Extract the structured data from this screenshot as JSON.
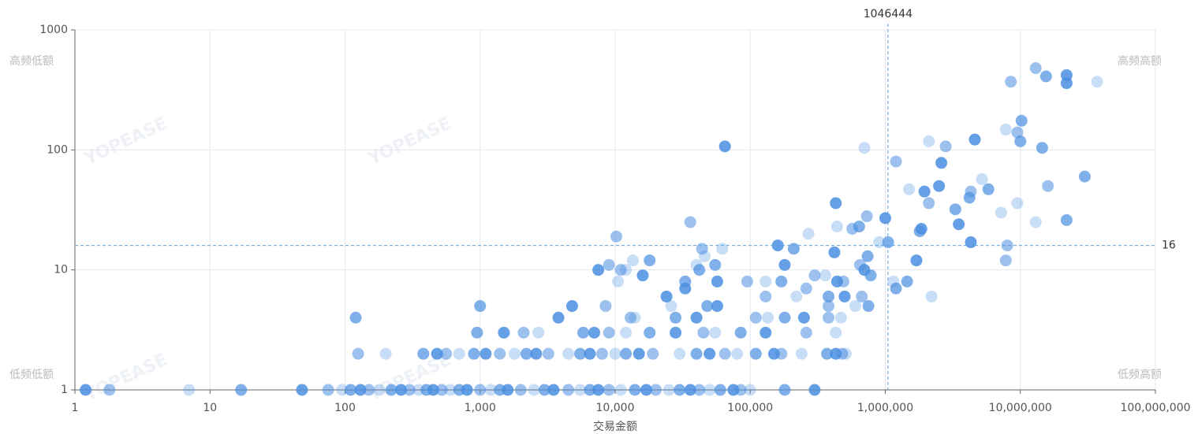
{
  "chart_data": {
    "type": "scatter",
    "x_label": "交易金额",
    "xscale": "log",
    "yscale": "log",
    "xlim": [
      1,
      100000000
    ],
    "ylim": [
      1,
      1000
    ],
    "xticks": [
      1,
      10,
      100,
      {
        "value": 1000,
        "label": "1,000"
      },
      {
        "value": 10000,
        "label": "10,000"
      },
      {
        "value": 100000,
        "label": "100,000"
      },
      {
        "value": 1000000,
        "label": "1,000,000"
      },
      {
        "value": 10000000,
        "label": "10,000,000"
      },
      {
        "value": 100000000,
        "label": "100,000,000"
      }
    ],
    "yticks": [
      1,
      10,
      100,
      1000
    ],
    "grid": true,
    "color": "#4a8ee0",
    "reference_lines": {
      "x": 1046444,
      "y": 16,
      "color": "#5aa0e0"
    },
    "quadrant_labels": {
      "top_left": "高频低额",
      "top_right": "高频高额",
      "bottom_left": "低频低额",
      "bottom_right": "低频高额"
    },
    "watermark": "YOPEASE",
    "x": [
      1.2,
      1.8,
      7,
      17,
      48,
      75,
      95,
      110,
      130,
      150,
      180,
      220,
      260,
      300,
      350,
      400,
      450,
      520,
      600,
      700,
      800,
      1000,
      1200,
      1400,
      1600,
      2000,
      2500,
      3000,
      3500,
      4500,
      5500,
      6500,
      7500,
      9000,
      11000,
      14000,
      17000,
      20000,
      25000,
      30000,
      36000,
      42000,
      50000,
      60000,
      75000,
      85000,
      100000,
      180000,
      300000,
      125,
      200,
      380,
      480,
      560,
      700,
      900,
      1100,
      1400,
      1800,
      2200,
      2600,
      3200,
      4500,
      5500,
      6500,
      8000,
      10000,
      12000,
      15000,
      19000,
      30000,
      40000,
      50000,
      65000,
      80000,
      110000,
      150000,
      170000,
      240000,
      370000,
      430000,
      480000,
      510000,
      950,
      1500,
      2100,
      2700,
      5800,
      7000,
      9000,
      12000,
      18000,
      28000,
      45000,
      55000,
      85000,
      130000,
      260000,
      430000,
      120,
      3800,
      13000,
      14000,
      28000,
      40000,
      110000,
      135000,
      180000,
      250000,
      380000,
      470000,
      1000,
      4800,
      8500,
      26000,
      48000,
      57000,
      380000,
      600000,
      750000,
      24000,
      130000,
      220000,
      380000,
      500000,
      670000,
      2200000,
      1200000,
      33000,
      260000,
      10500,
      33000,
      57000,
      95000,
      130000,
      170000,
      440000,
      490000,
      1150000,
      1450000,
      16000,
      300000,
      360000,
      780000,
      7500,
      11000,
      12000,
      42000,
      700000,
      9000,
      40000,
      55000,
      180000,
      650000,
      13500,
      18000,
      1700000,
      7800000,
      46000,
      740000,
      420000,
      44000,
      62000,
      210000,
      160000,
      8000000,
      900000,
      1050000,
      4300000,
      10200,
      270000,
      1800000,
      1850000,
      570000,
      440000,
      640000,
      3500000,
      36000,
      13000000,
      22000000,
      1000000,
      730000,
      7200000,
      3300000,
      430000,
      2100000,
      9500000,
      4200000,
      1950000,
      4300000,
      1500000,
      5800000,
      2500000,
      16000000,
      5200000,
      30000000,
      2600000,
      1200000,
      700000,
      14500000,
      65000,
      2800000,
      2100000,
      10000000,
      4600000,
      9500000,
      7800000,
      10200000,
      22000000,
      8500000,
      37000000,
      15500000,
      22000000,
      13000000
    ],
    "values": [
      1,
      1,
      1,
      1,
      1,
      1,
      1,
      1,
      1,
      1,
      1,
      1,
      1,
      1,
      1,
      1,
      1,
      1,
      1,
      1,
      1,
      1,
      1,
      1,
      1,
      1,
      1,
      1,
      1,
      1,
      1,
      1,
      1,
      1,
      1,
      1,
      1,
      1,
      1,
      1,
      1,
      1,
      1,
      1,
      1,
      1,
      1,
      1,
      1,
      2,
      2,
      2,
      2,
      2,
      2,
      2,
      2,
      2,
      2,
      2,
      2,
      2,
      2,
      2,
      2,
      2,
      2,
      2,
      2,
      2,
      2,
      2,
      2,
      2,
      2,
      2,
      2,
      2,
      2,
      2,
      2,
      2,
      2,
      3,
      3,
      3,
      3,
      3,
      3,
      3,
      3,
      3,
      3,
      3,
      3,
      3,
      3,
      3,
      3,
      4,
      4,
      4,
      4,
      4,
      4,
      4,
      4,
      4,
      4,
      4,
      4,
      5,
      5,
      5,
      5,
      5,
      5,
      5,
      5,
      5,
      6,
      6,
      6,
      6,
      6,
      6,
      6,
      7,
      7,
      7,
      8,
      8,
      8,
      8,
      8,
      8,
      8,
      8,
      8,
      8,
      9,
      9,
      9,
      9,
      10,
      10,
      10,
      10,
      10,
      11,
      11,
      11,
      11,
      11,
      12,
      12,
      12,
      12,
      13,
      13,
      14,
      15,
      15,
      15,
      16,
      16,
      17,
      17,
      17,
      19,
      20,
      21,
      22,
      22,
      23,
      23,
      24,
      25,
      25,
      26,
      27,
      28,
      30,
      32,
      36,
      36,
      36,
      40,
      45,
      45,
      47,
      47,
      50,
      50,
      57,
      60,
      78,
      80,
      104,
      104,
      107,
      107,
      118,
      118,
      122,
      140,
      148,
      175,
      360,
      370,
      370,
      410,
      420,
      480
    ]
  }
}
